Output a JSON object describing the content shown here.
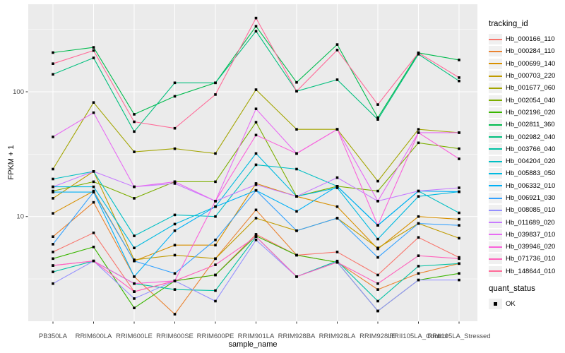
{
  "chart_data": {
    "type": "line",
    "title": "",
    "xlabel": "sample_name",
    "ylabel": "FPKM + 1",
    "y_scale": "log10",
    "ylim": [
      1.45,
      503
    ],
    "grid": true,
    "legend_position": "right",
    "y_ticks": [
      {
        "label": "10",
        "value": 10
      },
      {
        "label": "100",
        "value": 100
      }
    ],
    "minor_gridline_values": [
      3.162,
      31.62,
      316.2
    ],
    "colors": {
      "panel_bg": "#EBEBEB",
      "grid": "#FFFFFF",
      "tick_text": "#4D4D4D",
      "tick_mark": "#333333",
      "marker": "#000000",
      "legend_key_bg": "#F0F0F0"
    },
    "legend": {
      "title": "tracking_id"
    },
    "legend2": {
      "title": "quant_status",
      "items": [
        {
          "label": "OK",
          "marker": "black-square"
        }
      ]
    },
    "categories": [
      "PB350LA",
      "RRIM600LA",
      "RRIM600LE",
      "RRIM600SE",
      "RRIM600PE",
      "RRIM901LA",
      "RRIM928BA",
      "RRIM928LA",
      "RRIM928LE",
      "RRII105LA_Control",
      "RRII105LA_Stressed"
    ],
    "series": [
      {
        "name": "Hb_000166_110",
        "color": "#F8766D",
        "values": [
          5.2,
          7.4,
          2.5,
          3.05,
          3.4,
          7.2,
          4.9,
          5.2,
          3.4,
          6.8,
          4.7
        ]
      },
      {
        "name": "Hb_000284_110",
        "color": "#EA8331",
        "values": [
          6.9,
          13,
          3.3,
          1.65,
          4.6,
          11.3,
          4.9,
          4.3,
          2.6,
          3.5,
          4.2
        ]
      },
      {
        "name": "Hb_000699_140",
        "color": "#D89000",
        "values": [
          10.6,
          16,
          4.4,
          5.9,
          5.9,
          18.4,
          14.5,
          12,
          5.5,
          10,
          9.5
        ]
      },
      {
        "name": "Hb_000703_220",
        "color": "#C09B00",
        "values": [
          14,
          23,
          4.5,
          4.9,
          4.6,
          9.7,
          7.7,
          9.7,
          5.6,
          8.8,
          6.7
        ]
      },
      {
        "name": "Hb_001677_060",
        "color": "#A3A500",
        "values": [
          24,
          82,
          33,
          35,
          32,
          104,
          50,
          50,
          19.2,
          50,
          47
        ]
      },
      {
        "name": "Hb_002054_040",
        "color": "#7CAE00",
        "values": [
          16,
          19,
          14,
          19,
          19,
          57,
          14.5,
          17.5,
          16,
          39,
          35
        ]
      },
      {
        "name": "Hb_002196_020",
        "color": "#39B600",
        "values": [
          4.6,
          5.7,
          1.85,
          3.05,
          3.4,
          7.0,
          4.9,
          4.3,
          1.75,
          3.1,
          3.5
        ]
      },
      {
        "name": "Hb_002811_360",
        "color": "#00BB4E",
        "values": [
          206,
          227,
          66,
          92,
          118,
          335,
          119,
          239,
          62,
          205,
          180
        ]
      },
      {
        "name": "Hb_002982_040",
        "color": "#00BF7D",
        "values": [
          138,
          187,
          48,
          118,
          118,
          306,
          101,
          125,
          60,
          200,
          122
        ]
      },
      {
        "name": "Hb_003766_040",
        "color": "#00C1A3",
        "values": [
          3.6,
          4.4,
          2.9,
          2.6,
          2.55,
          6.9,
          3.3,
          4.4,
          2.1,
          4.0,
          4.2
        ]
      },
      {
        "name": "Hb_004204_020",
        "color": "#00BFC4",
        "values": [
          20,
          23,
          7.0,
          10.3,
          10,
          26,
          24,
          17.5,
          8.5,
          16,
          10.7
        ]
      },
      {
        "name": "Hb_005883_050",
        "color": "#00BAE0",
        "values": [
          17.3,
          17.3,
          5.6,
          8.7,
          12,
          32,
          14.5,
          17,
          6.6,
          14.5,
          15.8
        ]
      },
      {
        "name": "Hb_006332_010",
        "color": "#00B0F6",
        "values": [
          15.7,
          15.7,
          3.3,
          7.7,
          12,
          16.2,
          11,
          17.5,
          8.5,
          16,
          15.8
        ]
      },
      {
        "name": "Hb_006921_030",
        "color": "#35A2FF",
        "values": [
          6.0,
          15.7,
          4.4,
          3.5,
          6.5,
          16.2,
          7.7,
          9.7,
          4.7,
          8.8,
          8.5
        ]
      },
      {
        "name": "Hb_008085_010",
        "color": "#9590FF",
        "values": [
          2.9,
          4.4,
          2.2,
          3.05,
          2.1,
          6.5,
          3.3,
          4.3,
          1.75,
          3.1,
          3.1
        ]
      },
      {
        "name": "Hb_011689_020",
        "color": "#C77CFF",
        "values": [
          17.3,
          23,
          17.3,
          18.4,
          13.3,
          18,
          14.5,
          20.5,
          13.3,
          16,
          17
        ]
      },
      {
        "name": "Hb_039837_010",
        "color": "#E76BF3",
        "values": [
          43.5,
          68,
          17.3,
          19,
          13.3,
          73,
          32,
          50,
          13.3,
          47,
          47
        ]
      },
      {
        "name": "Hb_039946_020",
        "color": "#FA62DB",
        "values": [
          4.05,
          4.4,
          2.9,
          3.05,
          13.3,
          45,
          32,
          50,
          8.5,
          47,
          29
        ]
      },
      {
        "name": "Hb_071736_010",
        "color": "#FF62BC",
        "values": [
          4.05,
          4.4,
          2.5,
          3.05,
          4.1,
          6.9,
          3.3,
          4.3,
          2.9,
          4.85,
          4.6
        ]
      },
      {
        "name": "Hb_148644_010",
        "color": "#FF6A98",
        "values": [
          168,
          214,
          57.5,
          51,
          95,
          390,
          101,
          216,
          79,
          205,
          130
        ]
      }
    ]
  }
}
